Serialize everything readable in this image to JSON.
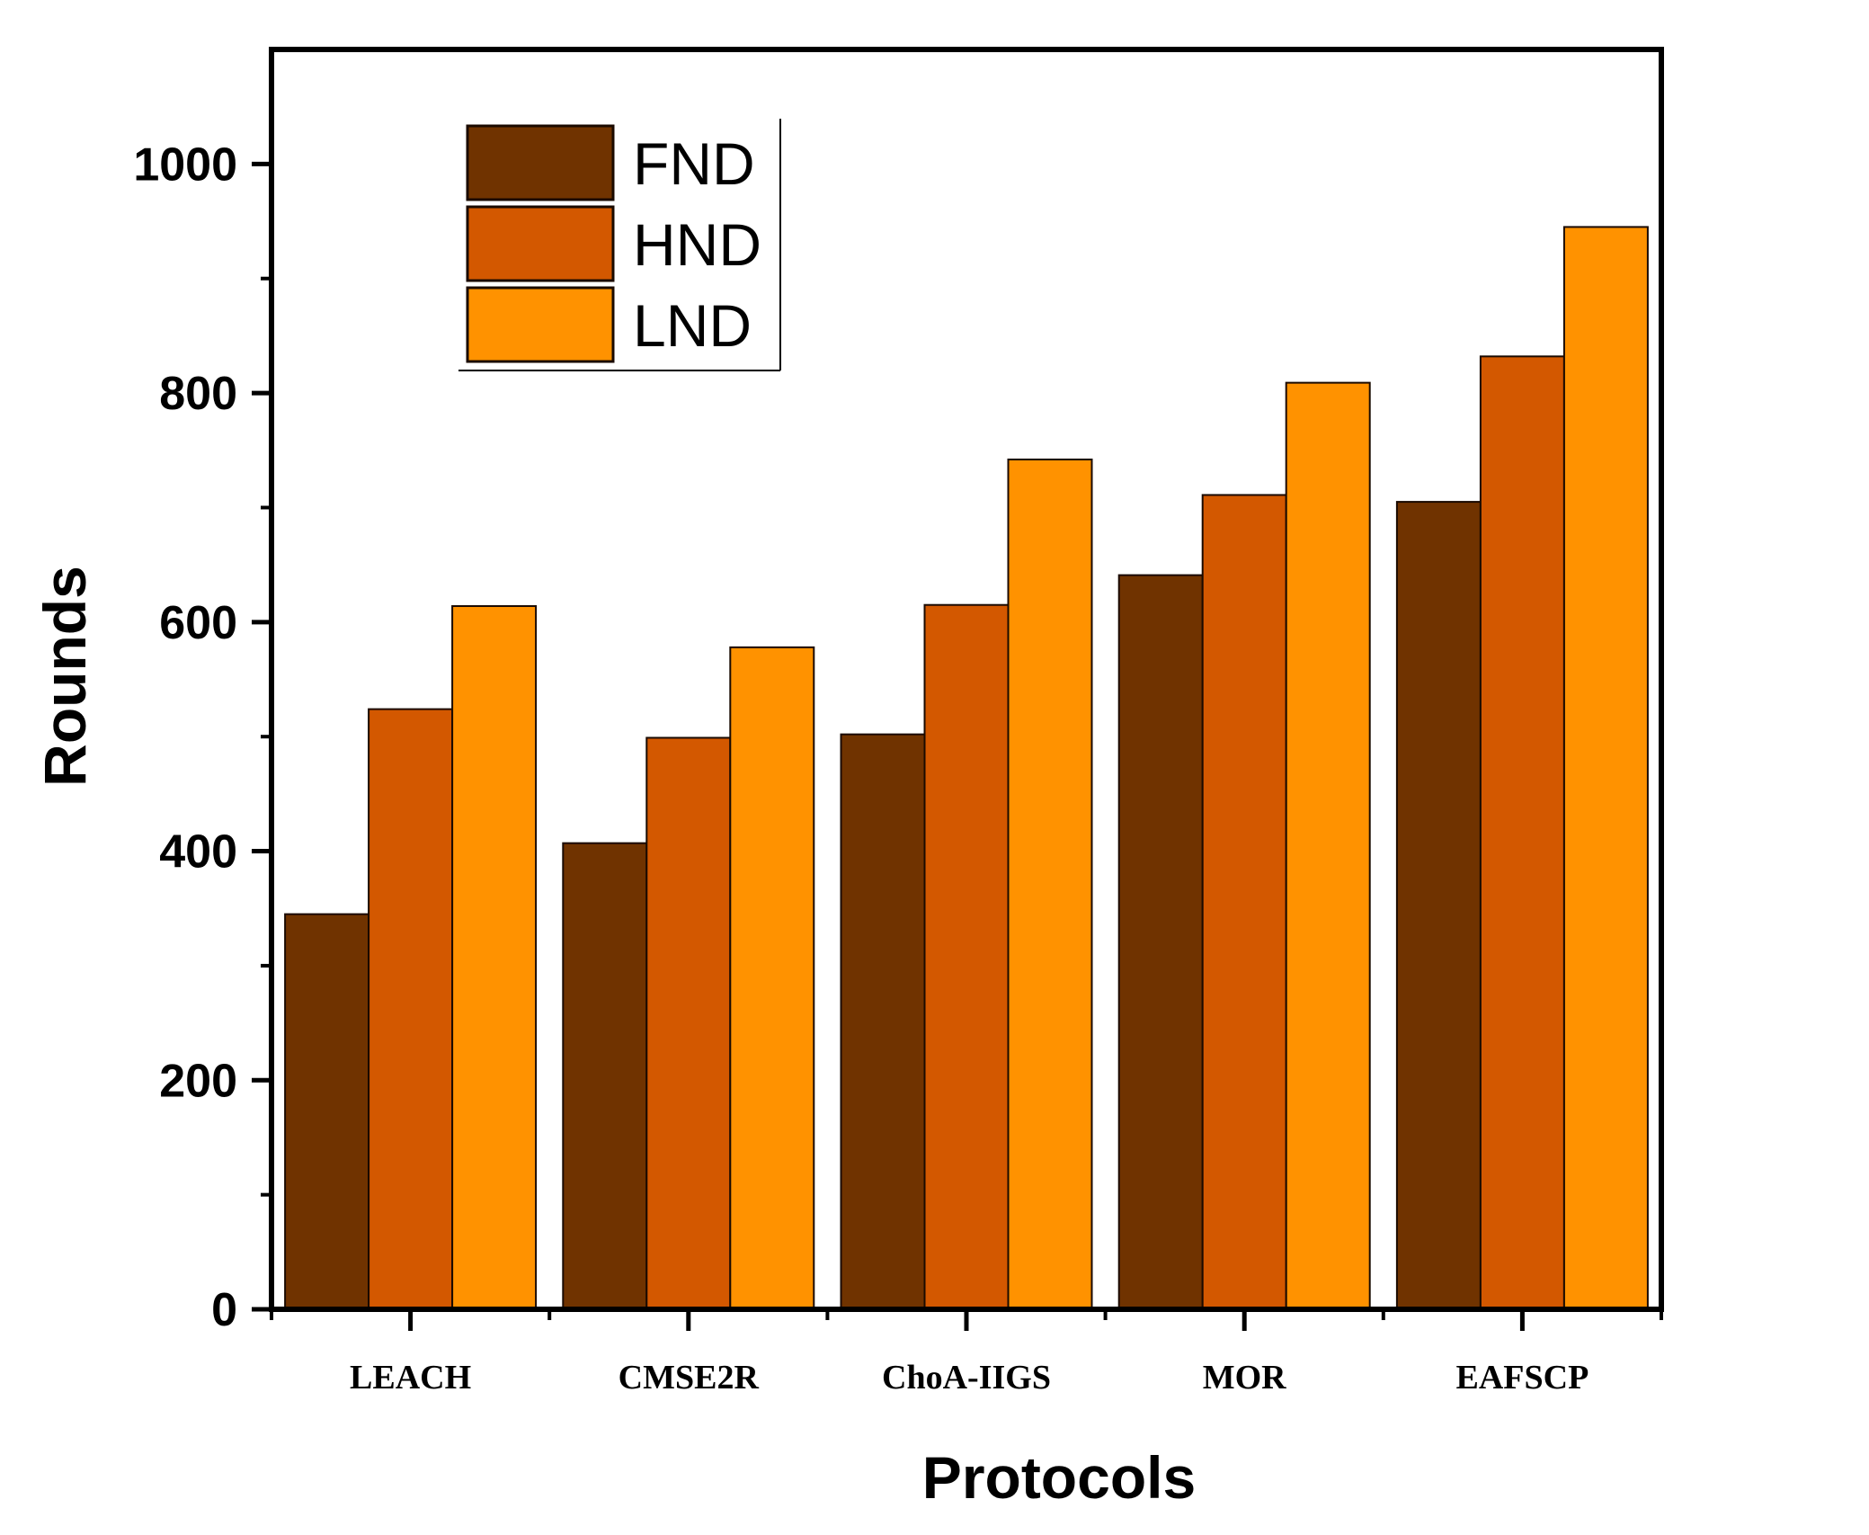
{
  "chart_data": {
    "type": "bar",
    "title": "",
    "xlabel": "Protocols",
    "ylabel": "Rounds",
    "categories": [
      "LEACH",
      "CMSE2R",
      "ChoA-IIGS",
      "MOR",
      "EAFSCP"
    ],
    "series": [
      {
        "name": "FND",
        "color": "#703300",
        "values": [
          345,
          407,
          502,
          641,
          705
        ]
      },
      {
        "name": "HND",
        "color": "#d35800",
        "values": [
          524,
          499,
          615,
          711,
          832
        ]
      },
      {
        "name": "LND",
        "color": "#ff9200",
        "values": [
          614,
          578,
          742,
          809,
          945
        ]
      }
    ],
    "ylim": [
      0,
      1100
    ],
    "yticks": [
      "0",
      "200",
      "400",
      "600",
      "800",
      "1000"
    ],
    "grid": false,
    "legend_position": "top-left"
  }
}
